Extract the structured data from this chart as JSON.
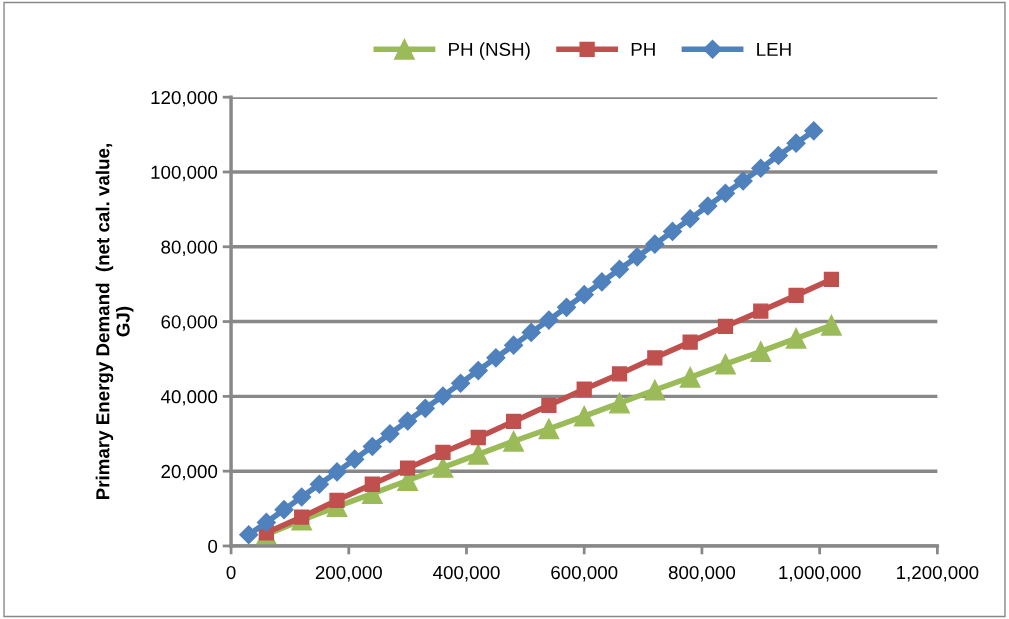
{
  "chart_data": {
    "type": "line",
    "ylabel": "Primary Energy Demand  (net cal. value,\nGJ)",
    "xlim": [
      0,
      1200000
    ],
    "xticks": [
      {
        "value": 0,
        "label": "0"
      },
      {
        "value": 200000,
        "label": "200,000"
      },
      {
        "value": 400000,
        "label": "400,000"
      },
      {
        "value": 600000,
        "label": "600,000"
      },
      {
        "value": 800000,
        "label": "800,000"
      },
      {
        "value": 1000000,
        "label": "1,000,000"
      },
      {
        "value": 1200000,
        "label": "1,200,000"
      }
    ],
    "ylim": [
      0,
      120000
    ],
    "yticks": [
      {
        "value": 0,
        "label": "0"
      },
      {
        "value": 20000,
        "label": "20,000"
      },
      {
        "value": 40000,
        "label": "40,000"
      },
      {
        "value": 60000,
        "label": "60,000"
      },
      {
        "value": 80000,
        "label": "80,000"
      },
      {
        "value": 100000,
        "label": "100,000"
      },
      {
        "value": 120000,
        "label": "120,000"
      }
    ],
    "grid": "y",
    "legend": "top",
    "line_style": "solid",
    "series": [
      {
        "name": "PH (NSH)",
        "color": "#9bbb59",
        "marker": "triangle",
        "x": [
          60000,
          120000,
          180000,
          240000,
          300000,
          360000,
          420000,
          480000,
          540000,
          600000,
          660000,
          720000,
          780000,
          840000,
          900000,
          960000,
          1020000
        ],
        "values": [
          3000,
          6900,
          10500,
          14000,
          17500,
          21000,
          24500,
          28000,
          31300,
          34700,
          38200,
          41700,
          45100,
          48600,
          52000,
          55500,
          59000
        ]
      },
      {
        "name": "PH",
        "color": "#c0504d",
        "marker": "square",
        "x": [
          60000,
          120000,
          180000,
          240000,
          300000,
          360000,
          420000,
          480000,
          540000,
          600000,
          660000,
          720000,
          780000,
          840000,
          900000,
          960000,
          1020000
        ],
        "values": [
          3500,
          7700,
          12200,
          16500,
          20800,
          25000,
          29000,
          33300,
          37600,
          41900,
          46000,
          50300,
          54500,
          58700,
          62800,
          67000,
          71300
        ]
      },
      {
        "name": "LEH",
        "color": "#4f81bd",
        "marker": "diamond",
        "x": [
          30000,
          60000,
          90000,
          120000,
          150000,
          180000,
          210000,
          240000,
          270000,
          300000,
          330000,
          360000,
          390000,
          420000,
          450000,
          480000,
          510000,
          540000,
          570000,
          600000,
          630000,
          660000,
          690000,
          720000,
          750000,
          780000,
          810000,
          840000,
          870000,
          900000,
          930000,
          960000,
          990000
        ],
        "values": [
          3000,
          6300,
          9700,
          13100,
          16500,
          19800,
          23200,
          26600,
          30000,
          33400,
          36800,
          40100,
          43500,
          46900,
          50300,
          53700,
          57100,
          60400,
          63800,
          67200,
          70600,
          74000,
          77300,
          80700,
          84100,
          87500,
          90900,
          94300,
          97600,
          101000,
          104400,
          107700,
          111000
        ]
      }
    ]
  }
}
